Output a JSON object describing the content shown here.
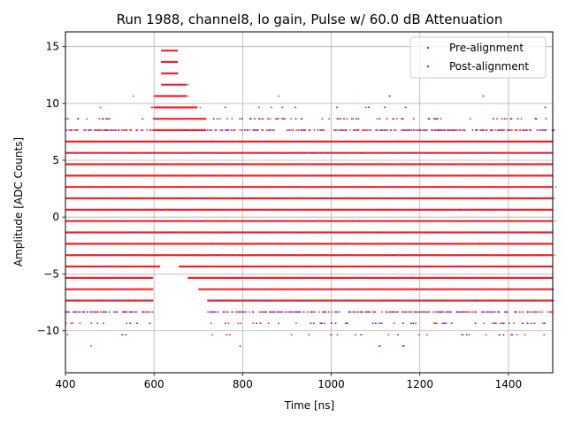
{
  "chart_data": {
    "type": "scatter",
    "title": "Run 1988, channel8, lo gain, Pulse w/ 60.0 dB Attenuation",
    "xlabel": "Time [ns]",
    "ylabel": "Amplitude [ADC Counts]",
    "xlim": [
      400,
      1500
    ],
    "ylim": [
      -13.7,
      16.3
    ],
    "xticks": [
      400,
      600,
      800,
      1000,
      1200,
      1400
    ],
    "yticks": [
      -10,
      -5,
      0,
      5,
      10,
      15
    ],
    "xtick_labels": [
      "400",
      "600",
      "800",
      "1000",
      "1200",
      "1400"
    ],
    "ytick_labels": [
      "−10",
      "−5",
      "0",
      "5",
      "10",
      "15"
    ],
    "grid": true,
    "legend_position": "top-right",
    "series": [
      {
        "name": "Pre-alignment",
        "color": "#3a3aff",
        "marker": "point"
      },
      {
        "name": "Post-alignment",
        "color": "#ff2020",
        "marker": "point"
      }
    ],
    "amplitude_levels": {
      "step": 1.0,
      "offset": 0.65,
      "dense_min": -7.35,
      "dense_max": 6.65
    },
    "pulse_window": {
      "start_ns": 600,
      "end_ns": 720
    },
    "pulse_profile": [
      {
        "x_from": 600,
        "x_to": 615,
        "y_min": -4.35,
        "y_max": 10.65
      },
      {
        "x_from": 615,
        "x_to": 655,
        "y_min": -3.35,
        "y_max": 14.65
      },
      {
        "x_from": 655,
        "x_to": 675,
        "y_min": -4.35,
        "y_max": 11.65
      },
      {
        "x_from": 675,
        "x_to": 700,
        "y_min": -5.35,
        "y_max": 9.65
      },
      {
        "x_from": 700,
        "x_to": 720,
        "y_min": -6.35,
        "y_max": 8.65
      }
    ]
  }
}
